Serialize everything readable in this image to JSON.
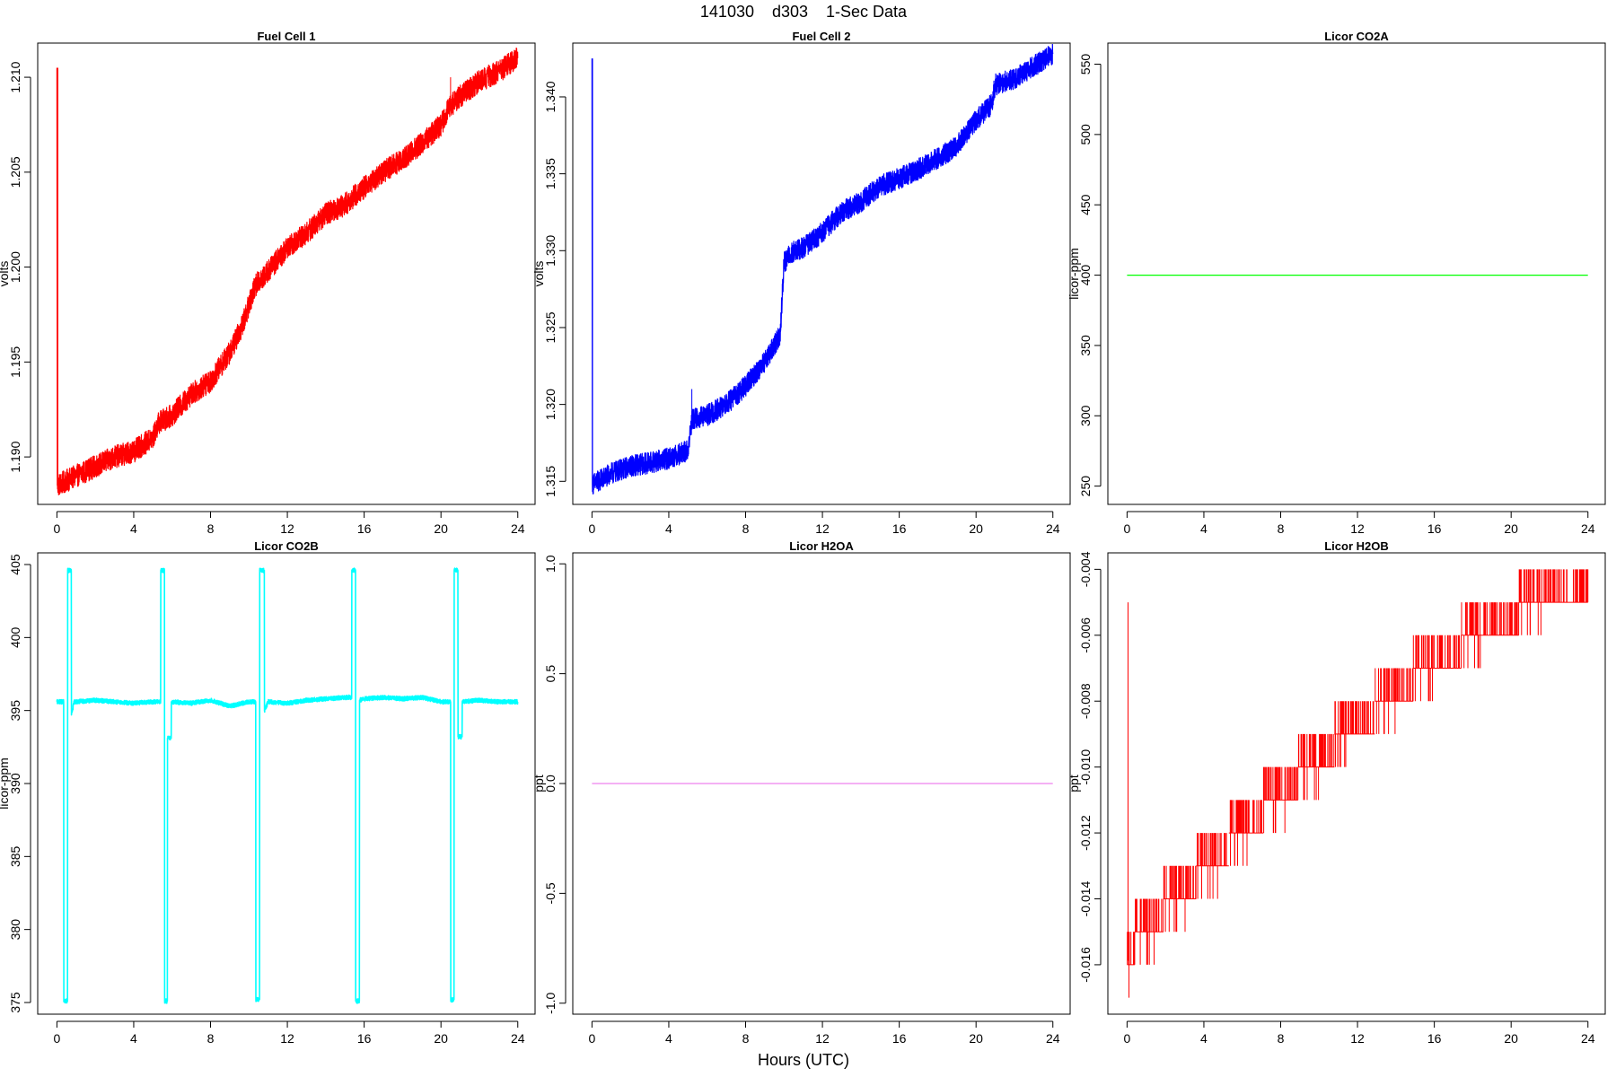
{
  "page": {
    "title": "141030    d303    1-Sec Data",
    "xlabel": "Hours (UTC)"
  },
  "chart_data": [
    {
      "type": "line",
      "title": "Fuel Cell 1",
      "xlabel": "",
      "ylabel": "volts",
      "color": "#ff0000",
      "xlim": [
        -1,
        24.9
      ],
      "ylim": [
        1.1875,
        1.2118
      ],
      "xticks": [
        0,
        4,
        8,
        12,
        16,
        20,
        24
      ],
      "yticks": [
        1.19,
        1.195,
        1.2,
        1.205,
        1.21
      ],
      "ytick_labels": [
        "1.190",
        "1.195",
        "1.200",
        "1.205",
        "1.210"
      ],
      "grid": false,
      "noise": 0.0006,
      "spikes": [
        {
          "x": 0.05,
          "y": 1.2105
        },
        {
          "x": 20.5,
          "y": 1.21
        },
        {
          "x": 19.2,
          "y": 1.2072
        }
      ],
      "series": [
        {
          "x": [
            0,
            0.02,
            1,
            2,
            3,
            4,
            5,
            5.3,
            6,
            7,
            8,
            9,
            9.6,
            10,
            10.3,
            11,
            12,
            13,
            14,
            15,
            16,
            17,
            18,
            19,
            20,
            20.5,
            21,
            22,
            23,
            24
          ],
          "y": [
            1.2105,
            1.1885,
            1.189,
            1.1895,
            1.19,
            1.1903,
            1.191,
            1.1918,
            1.1922,
            1.1933,
            1.194,
            1.1955,
            1.1968,
            1.198,
            1.199,
            1.1998,
            1.201,
            1.2018,
            1.2028,
            1.2033,
            1.2042,
            1.205,
            1.2057,
            1.2065,
            1.2075,
            1.2085,
            1.209,
            1.2098,
            1.2103,
            1.211
          ]
        }
      ]
    },
    {
      "type": "line",
      "title": "Fuel Cell 2",
      "xlabel": "",
      "ylabel": "volts",
      "color": "#0000ff",
      "xlim": [
        -1,
        24.9
      ],
      "ylim": [
        1.3135,
        1.3435
      ],
      "xticks": [
        0,
        4,
        8,
        12,
        16,
        20,
        24
      ],
      "yticks": [
        1.315,
        1.32,
        1.325,
        1.33,
        1.335,
        1.34
      ],
      "ytick_labels": [
        "1.315",
        "1.320",
        "1.325",
        "1.330",
        "1.335",
        "1.340"
      ],
      "grid": false,
      "noise": 0.0007,
      "spikes": [
        {
          "x": 0.03,
          "y": 1.3425
        },
        {
          "x": 5.2,
          "y": 1.321
        }
      ],
      "series": [
        {
          "x": [
            0,
            0.02,
            1,
            2,
            3,
            4,
            5,
            5.2,
            6,
            7,
            8,
            9,
            9.8,
            10,
            10.3,
            11,
            12,
            13,
            14,
            15,
            16,
            17,
            18,
            19,
            20,
            20.8,
            21,
            22,
            23,
            24
          ],
          "y": [
            1.3425,
            1.3148,
            1.3155,
            1.316,
            1.3162,
            1.3165,
            1.317,
            1.319,
            1.3193,
            1.32,
            1.3212,
            1.3228,
            1.3245,
            1.3292,
            1.3298,
            1.3302,
            1.3312,
            1.3325,
            1.3332,
            1.3342,
            1.3347,
            1.3353,
            1.336,
            1.3368,
            1.3385,
            1.3395,
            1.3408,
            1.3412,
            1.342,
            1.3428
          ]
        }
      ]
    },
    {
      "type": "line",
      "title": "Licor CO2A",
      "xlabel": "",
      "ylabel": "licor-ppm",
      "color": "#00ff00",
      "xlim": [
        -1,
        24.9
      ],
      "ylim": [
        237,
        565
      ],
      "xticks": [
        0,
        4,
        8,
        12,
        16,
        20,
        24
      ],
      "yticks": [
        250,
        300,
        350,
        400,
        450,
        500,
        550
      ],
      "ytick_labels": [
        "250",
        "300",
        "350",
        "400",
        "450",
        "500",
        "550"
      ],
      "grid": false,
      "noise": 0,
      "series": [
        {
          "x": [
            0,
            24
          ],
          "y": [
            400,
            400
          ]
        }
      ]
    },
    {
      "type": "line",
      "title": "Licor CO2B",
      "xlabel": "",
      "ylabel": "licor-ppm",
      "color": "#00ffff",
      "xlim": [
        -1,
        24.9
      ],
      "ylim": [
        374.2,
        405.8
      ],
      "xticks": [
        0,
        4,
        8,
        12,
        16,
        20,
        24
      ],
      "yticks": [
        375,
        380,
        385,
        390,
        395,
        400,
        405
      ],
      "ytick_labels": [
        "375",
        "380",
        "385",
        "390",
        "395",
        "400",
        "405"
      ],
      "grid": false,
      "noise": 0.15,
      "series": [
        {
          "x": [
            0,
            0.35,
            0.36,
            0.55,
            0.56,
            0.75,
            0.76,
            0.9,
            1,
            2,
            3,
            4,
            5,
            5.4,
            5.41,
            5.6,
            5.61,
            5.75,
            5.76,
            5.95,
            5.96,
            6,
            7,
            8,
            9,
            10,
            10.35,
            10.36,
            10.55,
            10.56,
            10.8,
            10.81,
            11,
            12,
            13,
            14,
            15,
            15.35,
            15.36,
            15.55,
            15.56,
            15.75,
            15.76,
            16,
            17,
            18,
            19,
            20,
            20.5,
            20.51,
            20.68,
            20.69,
            20.88,
            20.89,
            21.1,
            21.11,
            22,
            23,
            24
          ],
          "y": [
            395.6,
            395.6,
            375.1,
            375.1,
            404.6,
            404.6,
            394.7,
            395.6,
            395.6,
            395.7,
            395.6,
            395.5,
            395.6,
            395.6,
            404.6,
            404.6,
            375.1,
            375.1,
            393.1,
            393.1,
            395.6,
            395.6,
            395.5,
            395.7,
            395.3,
            395.6,
            395.6,
            375.2,
            375.2,
            404.6,
            404.6,
            395.0,
            395.6,
            395.5,
            395.7,
            395.8,
            395.9,
            395.9,
            404.6,
            404.6,
            375.1,
            375.1,
            395.7,
            395.8,
            395.9,
            395.8,
            395.9,
            395.6,
            395.6,
            375.2,
            375.2,
            404.6,
            404.6,
            393.2,
            393.2,
            395.6,
            395.7,
            395.6,
            395.6
          ]
        }
      ]
    },
    {
      "type": "line",
      "title": "Licor H2OA",
      "xlabel": "",
      "ylabel": "ppt",
      "color": "#ee82ee",
      "xlim": [
        -1,
        24.9
      ],
      "ylim": [
        -1.05,
        1.05
      ],
      "xticks": [
        0,
        4,
        8,
        12,
        16,
        20,
        24
      ],
      "yticks": [
        -1.0,
        -0.5,
        0.0,
        0.5,
        1.0
      ],
      "ytick_labels": [
        "-1.0",
        "-0.5",
        "0.0",
        "0.5",
        "1.0"
      ],
      "grid": false,
      "noise": 0,
      "series": [
        {
          "x": [
            0,
            24
          ],
          "y": [
            0,
            0
          ]
        }
      ]
    },
    {
      "type": "line",
      "title": "Licor H2OB",
      "xlabel": "",
      "ylabel": "ppt",
      "color": "#ff0000",
      "xlim": [
        -1,
        24.9
      ],
      "ylim": [
        -0.0175,
        -0.0035
      ],
      "xticks": [
        0,
        4,
        8,
        12,
        16,
        20,
        24
      ],
      "yticks": [
        -0.016,
        -0.014,
        -0.012,
        -0.01,
        -0.008,
        -0.006,
        -0.004
      ],
      "ytick_labels": [
        "-0.016",
        "-0.014",
        "-0.012",
        "-0.010",
        "-0.008",
        "-0.006",
        "-0.004"
      ],
      "grid": false,
      "noise": 0,
      "steps": true,
      "spikes": [
        {
          "x": 0.05,
          "y": -0.005
        },
        {
          "x": 0.1,
          "y": -0.017
        },
        {
          "x": 23.95,
          "y": -0.004
        }
      ],
      "series": [
        {
          "x": [
            0,
            0.4,
            1.9,
            3.6,
            5.3,
            7.1,
            8.9,
            10.8,
            12.9,
            14.9,
            17.4,
            20.4,
            24
          ],
          "y": [
            -0.016,
            -0.015,
            -0.014,
            -0.013,
            -0.012,
            -0.011,
            -0.01,
            -0.009,
            -0.008,
            -0.007,
            -0.006,
            -0.005,
            -0.005
          ]
        }
      ]
    }
  ]
}
